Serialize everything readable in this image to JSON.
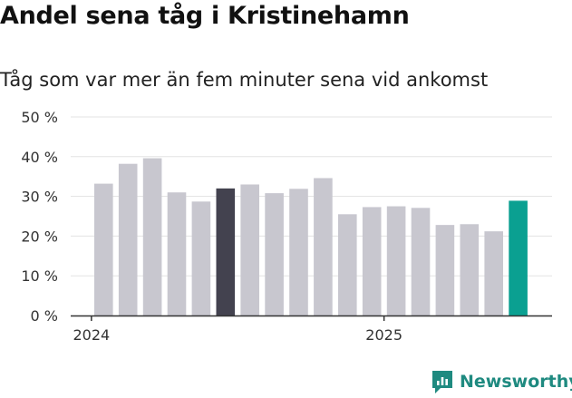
{
  "header": {
    "title": "Andel sena tåg i Kristinehamn",
    "subtitle": "Tåg som var mer än fem minuter sena vid ankomst"
  },
  "brand": {
    "name": "Newsworthy",
    "color": "#1f8a80",
    "icon": "newsworthy-logo-icon"
  },
  "colors": {
    "default_bar": "#c8c7cf",
    "highlight_dark": "#43424f",
    "highlight_teal": "#0aa091",
    "grid": "#e3e3e3",
    "axis": "#333333"
  },
  "chart_data": {
    "type": "bar",
    "ylim": [
      0,
      50
    ],
    "y_ticks": [
      0,
      10,
      20,
      30,
      40,
      50
    ],
    "y_tick_labels": [
      "0 %",
      "10 %",
      "20 %",
      "30 %",
      "40 %",
      "50 %"
    ],
    "x_tick_labels": [
      {
        "label": "2024",
        "index": -0.5
      },
      {
        "label": "2025",
        "index": 11.5
      }
    ],
    "grid": true,
    "values": [
      33.2,
      38.2,
      39.6,
      31.0,
      28.7,
      32.0,
      33.0,
      30.8,
      31.9,
      34.6,
      25.5,
      27.3,
      27.5,
      27.1,
      22.8,
      23.0,
      21.2,
      28.9
    ],
    "highlight": {
      "5": "dark",
      "17": "teal"
    }
  }
}
